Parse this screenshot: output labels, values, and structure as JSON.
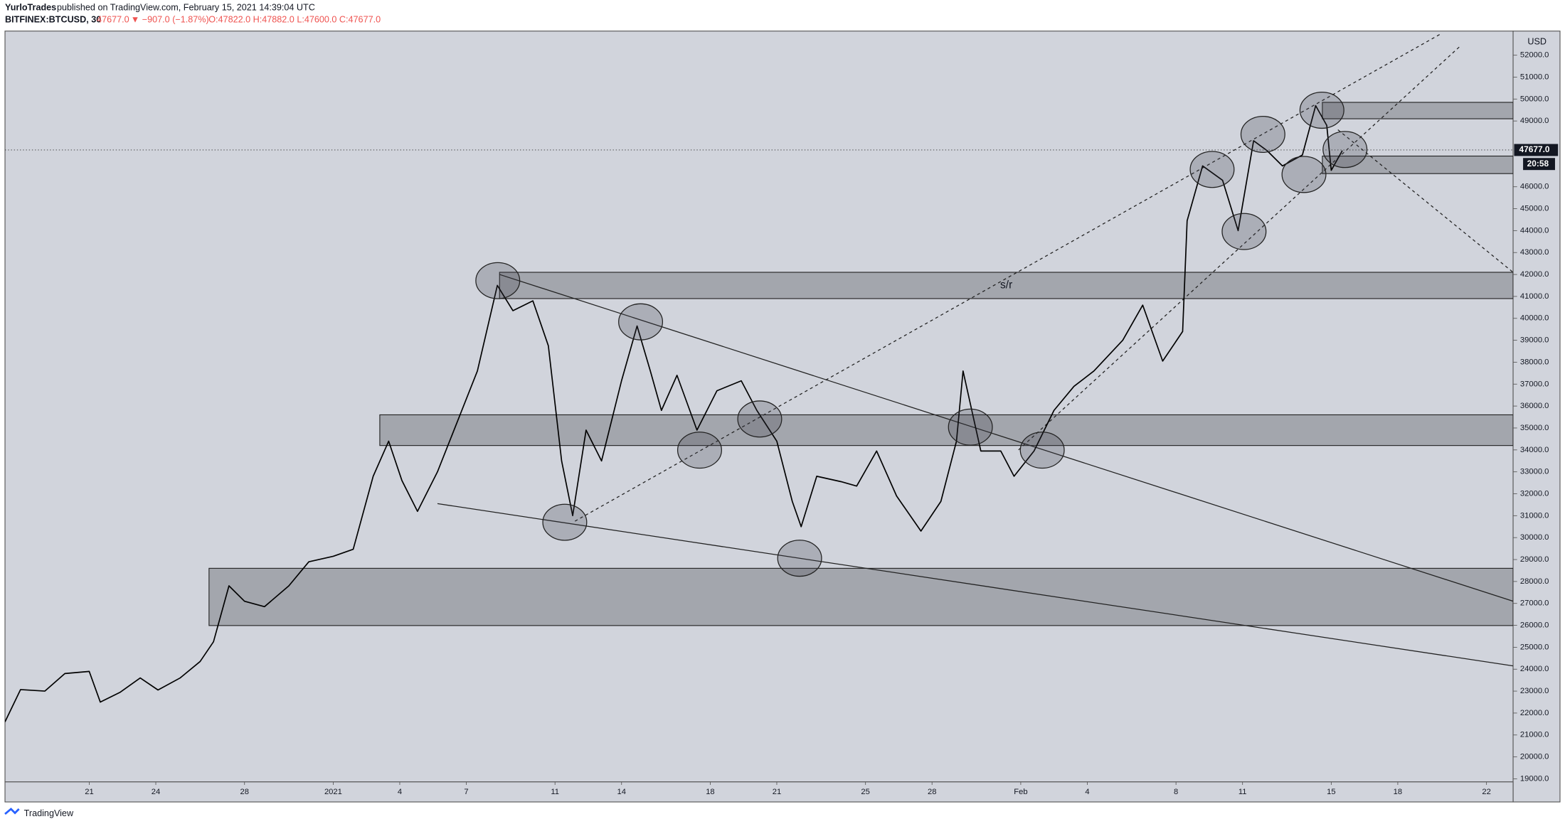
{
  "header": {
    "author": "YurloTrades",
    "published": "published on TradingView.com, February 15, 2021 14:39:04 UTC",
    "symbol": "BITFINEX:BTCUSD, 30",
    "quote": "47677.0",
    "change": "▼ −907.0 (−1.87%)",
    "ohlc": "O:47822.0 H:47882.0 L:47600.0 C:47677.0"
  },
  "footer": "TradingView",
  "chart_data": {
    "type": "line",
    "color": "#000000",
    "unit": "USD",
    "x": [
      17.2,
      17.9,
      19.0,
      19.9,
      21,
      21.5,
      22.4,
      23.3,
      24.1,
      25.1,
      26.0,
      26.6,
      27.3,
      28,
      28.9,
      30,
      30.9,
      32,
      32.9,
      33.8,
      34.5,
      35.1,
      35.8,
      36.7,
      37.6,
      38.5,
      39.4,
      40.1,
      41,
      41.7,
      42.3,
      42.8,
      43.4,
      44.1,
      45,
      45.7,
      46.3,
      46.8,
      47.5,
      48.4,
      49.3,
      50.4,
      51.1,
      52,
      52.7,
      53.1,
      53.8,
      54.9,
      55.6,
      56.5,
      57.4,
      58.5,
      59.4,
      60.1,
      60.4,
      61.2,
      62.1,
      62.7,
      63.6,
      64.5,
      65.4,
      66.3,
      67.6,
      68.5,
      69.4,
      70.3,
      70.5,
      71.2,
      72.1,
      72.8,
      73.5,
      74.1,
      74.8,
      75.7,
      76.3,
      76.8,
      77,
      77.5
    ],
    "values": [
      21600,
      23070,
      23000,
      23800,
      23900,
      22500,
      22950,
      23600,
      23050,
      23600,
      24350,
      25250,
      27800,
      27100,
      26850,
      27800,
      28900,
      29150,
      29470,
      32800,
      34400,
      32600,
      31200,
      33000,
      35300,
      37600,
      41500,
      40350,
      40800,
      38750,
      33500,
      31000,
      34900,
      33500,
      37150,
      39650,
      37600,
      35800,
      37400,
      34900,
      36700,
      37150,
      35800,
      34400,
      31650,
      30500,
      32800,
      32550,
      32350,
      33950,
      31900,
      30300,
      31650,
      34400,
      37600,
      33950,
      33950,
      32800,
      33950,
      35800,
      36900,
      37600,
      39000,
      40600,
      38050,
      39400,
      44450,
      46950,
      46300,
      44000,
      48100,
      47650,
      46950,
      47450,
      49700,
      48800,
      46750,
      47650
    ],
    "xlim": [
      17.2,
      85.2
    ],
    "ylim": [
      18860,
      53100
    ],
    "xticks": [
      {
        "value": 21,
        "label": "21"
      },
      {
        "value": 24,
        "label": "24"
      },
      {
        "value": 28,
        "label": "28"
      },
      {
        "value": 32,
        "label": "2021"
      },
      {
        "value": 35,
        "label": "4"
      },
      {
        "value": 38,
        "label": "7"
      },
      {
        "value": 42,
        "label": "11"
      },
      {
        "value": 45,
        "label": "14"
      },
      {
        "value": 49,
        "label": "18"
      },
      {
        "value": 52,
        "label": "21"
      },
      {
        "value": 56,
        "label": "25"
      },
      {
        "value": 59,
        "label": "28"
      },
      {
        "value": 63,
        "label": "Feb"
      },
      {
        "value": 66,
        "label": "4"
      },
      {
        "value": 70,
        "label": "8"
      },
      {
        "value": 73,
        "label": "11"
      },
      {
        "value": 77,
        "label": "15"
      },
      {
        "value": 80,
        "label": "18"
      },
      {
        "value": 84,
        "label": "22"
      }
    ],
    "yticks": [
      {
        "value": 19000,
        "label": "19000.0"
      },
      {
        "value": 20000,
        "label": "20000.0"
      },
      {
        "value": 21000,
        "label": "21000.0"
      },
      {
        "value": 22000,
        "label": "22000.0"
      },
      {
        "value": 23000,
        "label": "23000.0"
      },
      {
        "value": 24000,
        "label": "24000.0"
      },
      {
        "value": 25000,
        "label": "25000.0"
      },
      {
        "value": 26000,
        "label": "26000.0"
      },
      {
        "value": 27000,
        "label": "27000.0"
      },
      {
        "value": 28000,
        "label": "28000.0"
      },
      {
        "value": 29000,
        "label": "29000.0"
      },
      {
        "value": 30000,
        "label": "30000.0"
      },
      {
        "value": 31000,
        "label": "31000.0"
      },
      {
        "value": 32000,
        "label": "32000.0"
      },
      {
        "value": 33000,
        "label": "33000.0"
      },
      {
        "value": 34000,
        "label": "34000.0"
      },
      {
        "value": 35000,
        "label": "35000.0"
      },
      {
        "value": 36000,
        "label": "36000.0"
      },
      {
        "value": 37000,
        "label": "37000.0"
      },
      {
        "value": 38000,
        "label": "38000.0"
      },
      {
        "value": 39000,
        "label": "39000.0"
      },
      {
        "value": 40000,
        "label": "40000.0"
      },
      {
        "value": 41000,
        "label": "41000.0"
      },
      {
        "value": 42000,
        "label": "42000.0"
      },
      {
        "value": 43000,
        "label": "43000.0"
      },
      {
        "value": 44000,
        "label": "44000.0"
      },
      {
        "value": 45000,
        "label": "45000.0"
      },
      {
        "value": 46000,
        "label": "46000.0"
      },
      {
        "value": 49000,
        "label": "49000.0"
      },
      {
        "value": 50000,
        "label": "50000.0"
      },
      {
        "value": 51000,
        "label": "51000.0"
      },
      {
        "value": 52000,
        "label": "52000.0"
      }
    ],
    "last_price": {
      "value": 47677,
      "label": "47677.0"
    },
    "countdown": "20:58",
    "zones": [
      {
        "x0": 39.5,
        "y0": 40900,
        "y1": 42100,
        "label": "s/r"
      },
      {
        "x0": 34.1,
        "y0": 34200,
        "y1": 35600
      },
      {
        "x0": 26.4,
        "y0": 25990,
        "y1": 28600
      },
      {
        "x0": 76.6,
        "y0": 46600,
        "y1": 47400
      },
      {
        "x0": 76.6,
        "y0": 49100,
        "y1": 49850
      }
    ],
    "trendlines": [
      {
        "x": [
          39.5,
          85.2
        ],
        "y": [
          42000,
          27100
        ],
        "dashed": false
      },
      {
        "x": [
          36.7,
          85.2
        ],
        "y": [
          31550,
          24150
        ],
        "dashed": false
      },
      {
        "x": [
          42.9,
          81.9
        ],
        "y": [
          30750,
          52950
        ],
        "dashed": true
      },
      {
        "x": [
          62.9,
          82.8
        ],
        "y": [
          34000,
          52400
        ],
        "dashed": true
      },
      {
        "x": [
          77.3,
          85.2
        ],
        "y": [
          48600,
          42100
        ],
        "dashed": true
      }
    ],
    "markers": {
      "x": [
        39.42,
        45.86,
        42.44,
        48.52,
        51.23,
        53.03,
        60.73,
        63.97,
        71.63,
        73.07,
        73.92,
        75.77,
        76.58,
        77.62
      ],
      "y": [
        41720,
        39840,
        30700,
        33990,
        35410,
        29060,
        35040,
        33990,
        46790,
        43960,
        48390,
        46560,
        49490,
        47700
      ]
    }
  }
}
